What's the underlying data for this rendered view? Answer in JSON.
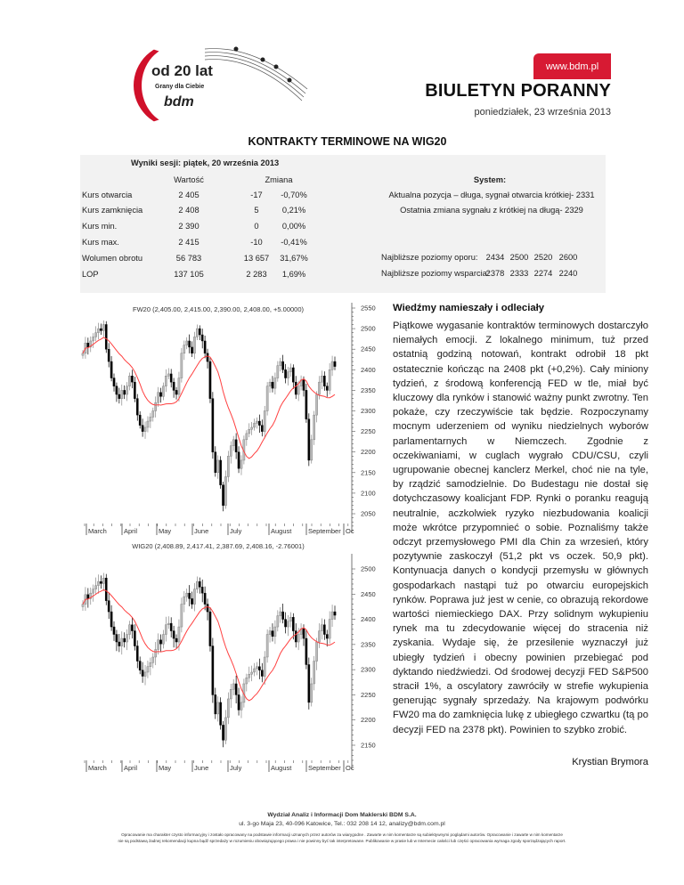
{
  "header": {
    "logo": {
      "line1": "od 20 lat",
      "line2": "Grany dla Ciebie",
      "brand": "bdm"
    },
    "url": "www.bdm.pl",
    "title": "BIULETYN PORANNY",
    "date": "poniedziałek, 23 września 2013",
    "accent_color": "#d71a33"
  },
  "section_title": "KONTRAKTY TERMINOWE NA WIG20",
  "session": {
    "title": "Wyniki sesji: piątek, 20 września 2013",
    "col_value": "Wartość",
    "col_change": "Zmiana",
    "col_system": "System:",
    "rows": [
      {
        "label": "Kurs otwarcia",
        "value": "2 405",
        "change": "-17",
        "pct": "-0,70%"
      },
      {
        "label": "Kurs zamknięcia",
        "value": "2 408",
        "change": "5",
        "pct": "0,21%"
      },
      {
        "label": "Kurs min.",
        "value": "2 390",
        "change": "0",
        "pct": "0,00%"
      },
      {
        "label": "Kurs max.",
        "value": "2 415",
        "change": "-10",
        "pct": "-0,41%"
      },
      {
        "label": "Wolumen obrotu",
        "value": "56 783",
        "change": "13 657",
        "pct": "31,67%"
      },
      {
        "label": "LOP",
        "value": "137 105",
        "change": "2 283",
        "pct": "1,69%"
      }
    ],
    "system_line1": "Aktualna pozycja – długa, sygnał otwarcia krótkiej- 2331",
    "system_line2": "Ostatnia zmiana sygnału z krótkiej na długą- 2329",
    "resistance_label": "Najbliższe poziomy oporu:",
    "resistance": [
      "2434",
      "2500",
      "2520",
      "2600"
    ],
    "support_label": "Najbliższe poziomy wsparcia:",
    "support": [
      "2378",
      "2333",
      "2274",
      "2240"
    ]
  },
  "article": {
    "heading": "Wiedźmy namieszały i odleciały",
    "body": "Piątkowe wygasanie kontraktów terminowych dostarczyło niemałych emocji. Z lokalnego minimum, tuż przed ostatnią godziną notowań, kontrakt odrobił 18 pkt ostatecznie kończąc na 2408 pkt (+0,2%). Cały miniony tydzień, z środową konferencją FED w tle, miał być kluczowy dla rynków i stanowić ważny punkt zwrotny. Ten pokaże, czy rzeczywiście tak będzie. Rozpoczynamy mocnym uderzeniem od wyniku niedzielnych wyborów parlamentarnych w Niemczech. Zgodnie z oczekiwaniami, w cuglach wygrało CDU/CSU, czyli ugrupowanie obecnej kanclerz Merkel, choć nie na tyle, by rządzić samodzielnie. Do Budestagu nie dostał się dotychczasowy koalicjant FDP. Rynki o poranku reagują neutralnie, aczkolwiek ryzyko niezbudowania koalicji może wkrótce przypomnieć o sobie. Poznaliśmy także odczyt przemysłowego PMI dla Chin za wrzesień, który pozytywnie zaskoczył (51,2 pkt vs oczek. 50,9 pkt). Kontynuacja danych o kondycji przemysłu w głównych gospodarkach nastąpi tuż po otwarciu europejskich rynków.  Poprawa już jest w cenie, co obrazują rekordowe wartości niemieckiego DAX. Przy solidnym wykupieniu rynek ma tu zdecydowanie więcej do stracenia niż zyskania. Wydaje się, że przesilenie wyznaczył już ubiegły tydzień i obecny powinien przebiegać pod dyktando niedźwiedzi. Od środowej decyzji FED S&P500 stracił 1%, a oscylatory zawróciły w strefie wykupienia generując sygnały sprzedaży. Na krajowym podwórku FW20 ma do zamknięcia lukę z ubiegłego czwartku (tą po decyzji FED na 2378 pkt).  Powinien to szybko zrobić.",
    "author": "Krystian Brymora"
  },
  "chart_data": [
    {
      "type": "candlestick",
      "title": "FW20 (2,405.00, 2,415.00, 2,390.00, 2,408.00, +5.00000)",
      "x_ticks": [
        "March",
        "April",
        "May",
        "June",
        "July",
        "August",
        "September",
        "Oc"
      ],
      "y_ticks": [
        2550,
        2500,
        2450,
        2400,
        2350,
        2300,
        2250,
        2200,
        2150,
        2100,
        2050
      ],
      "ylim": [
        2040,
        2560
      ],
      "ma_color": "#ff4040",
      "closes": [
        2440,
        2465,
        2455,
        2470,
        2480,
        2490,
        2500,
        2495,
        2510,
        2450,
        2420,
        2380,
        2360,
        2340,
        2330,
        2350,
        2340,
        2360,
        2385,
        2370,
        2330,
        2290,
        2265,
        2250,
        2260,
        2275,
        2285,
        2300,
        2320,
        2345,
        2335,
        2360,
        2385,
        2390,
        2370,
        2350,
        2340,
        2380,
        2440,
        2460,
        2470,
        2455,
        2440,
        2480,
        2500,
        2485,
        2470,
        2440,
        2420,
        2330,
        2200,
        2150,
        2180,
        2120,
        2070,
        2140,
        2190,
        2215,
        2230,
        2200,
        2160,
        2180,
        2230,
        2245,
        2255,
        2260,
        2270,
        2275,
        2265,
        2250,
        2300,
        2360,
        2370,
        2355,
        2380,
        2410,
        2420,
        2400,
        2380,
        2395,
        2405,
        2370,
        2340,
        2360,
        2375,
        2350,
        2280,
        2180,
        2230,
        2290,
        2340,
        2370,
        2385,
        2360,
        2350,
        2400,
        2420,
        2408
      ]
    },
    {
      "type": "candlestick",
      "title": "WIG20 (2,408.89, 2,417.41, 2,387.69, 2,408.16, -2.76001)",
      "x_ticks": [
        "March",
        "April",
        "May",
        "June",
        "July",
        "August",
        "September",
        "Oc"
      ],
      "y_ticks": [
        2500,
        2450,
        2400,
        2350,
        2300,
        2250,
        2200,
        2150
      ],
      "ylim": [
        2120,
        2540
      ],
      "ma_color": "#ff4040",
      "closes": [
        2430,
        2449,
        2441,
        2452,
        2460,
        2467,
        2475,
        2471,
        2482,
        2437,
        2415,
        2385,
        2370,
        2355,
        2347,
        2362,
        2355,
        2370,
        2389,
        2377,
        2347,
        2317,
        2299,
        2287,
        2295,
        2306,
        2314,
        2325,
        2340,
        2359,
        2351,
        2370,
        2389,
        2392,
        2377,
        2362,
        2355,
        2385,
        2430,
        2445,
        2452,
        2441,
        2430,
        2460,
        2475,
        2464,
        2452,
        2430,
        2415,
        2347,
        2250,
        2212,
        2235,
        2190,
        2160,
        2205,
        2242,
        2261,
        2272,
        2250,
        2220,
        2235,
        2272,
        2284,
        2291,
        2295,
        2302,
        2306,
        2299,
        2287,
        2325,
        2370,
        2377,
        2366,
        2385,
        2407,
        2415,
        2400,
        2385,
        2396,
        2404,
        2377,
        2355,
        2370,
        2381,
        2362,
        2310,
        2235,
        2272,
        2317,
        2355,
        2377,
        2389,
        2370,
        2362,
        2400,
        2415,
        2408
      ]
    }
  ],
  "footer": {
    "line1": "Wydział Analiz i Informacji Dom Maklerski BDM  S.A.",
    "line2": "ul. 3-go Maja 23, 40-096 Katowice, Tel.: 032 208 14 12, analizy@bdm.com.pl",
    "disclaimer1": "Opracowanie  ma charakter czysto informacyjny i zostało opracowany na podstawie informacji uznanych przez autorów za wiarygodne . Zawarte w nim komentarze są subiektywnymi poglądami autorów. Opracowanie i zawarte w nim komentarze",
    "disclaimer2": "nie są podstawą żadnej rekomendacji kupna bądź sprzedaży w rozumieniu obowiązującego prawa i nie powinny być tak interpretowane. Publikowanie w prasie lub w Internecie całości lub części opracowania wymaga zgody sporządzających raport."
  }
}
